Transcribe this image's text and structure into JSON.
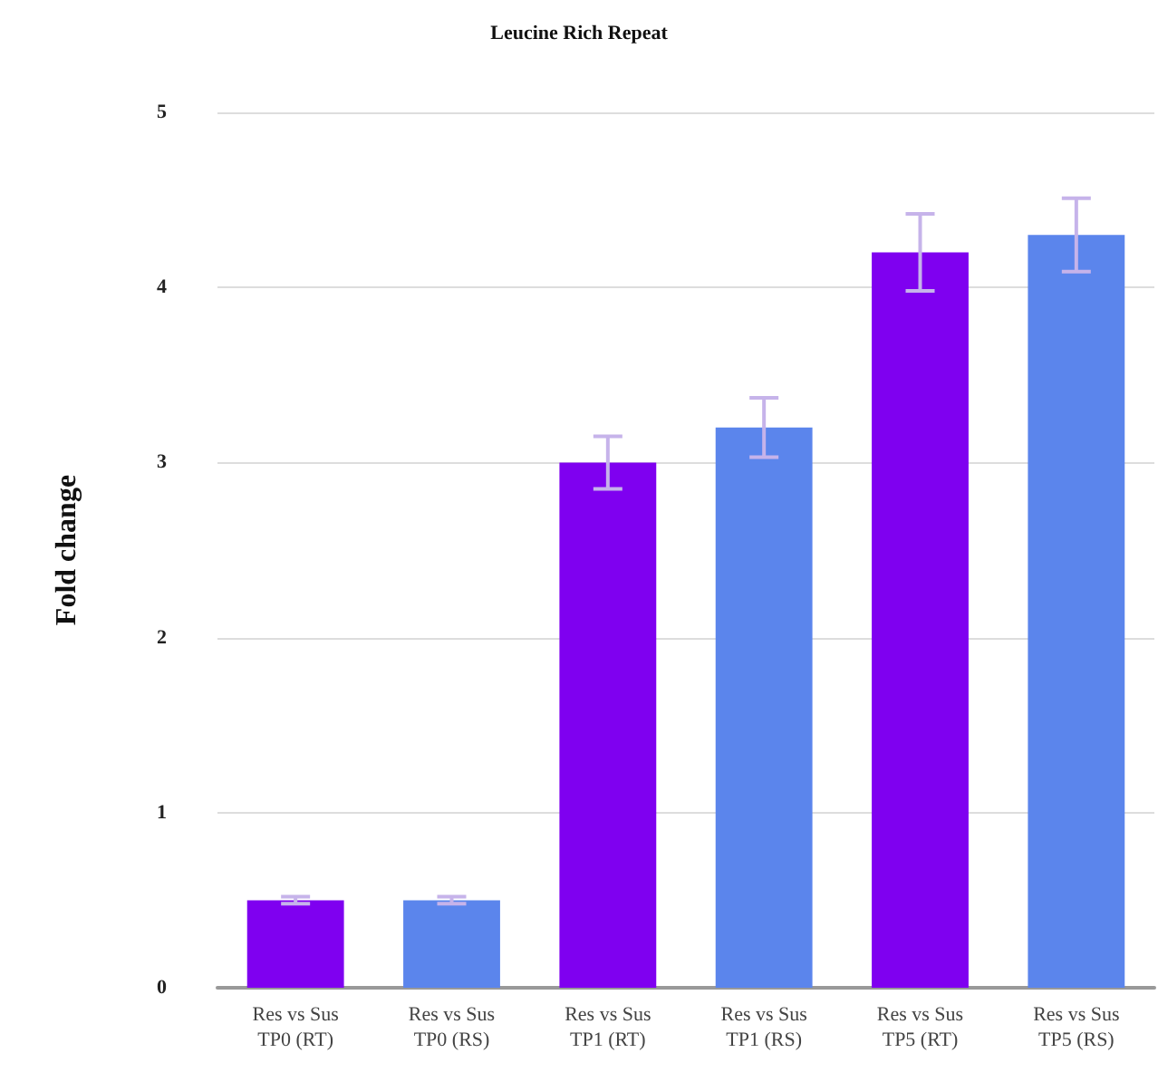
{
  "chart_data": {
    "type": "bar",
    "title": "Leucine Rich Repeat",
    "ylabel": "Fold change",
    "categories": [
      "Res vs Sus\nTP0 (RT)",
      "Res vs Sus\nTP0 (RS)",
      "Res vs Sus\nTP1 (RT)",
      "Res vs Sus\nTP1 (RS)",
      "Res vs Sus\nTP5 (RT)",
      "Res vs Sus\nTP5 (RS)"
    ],
    "values": [
      0.5,
      0.5,
      3.0,
      3.2,
      4.2,
      4.3
    ],
    "errors": [
      0.02,
      0.02,
      0.15,
      0.17,
      0.22,
      0.21
    ],
    "colors": [
      "#7f00f0",
      "#5b85ec",
      "#7f00f0",
      "#5b85ec",
      "#7f00f0",
      "#5b85ec"
    ],
    "ylim": [
      0,
      5
    ],
    "yticks": [
      0,
      1,
      2,
      3,
      4,
      5
    ],
    "grid": "y"
  }
}
